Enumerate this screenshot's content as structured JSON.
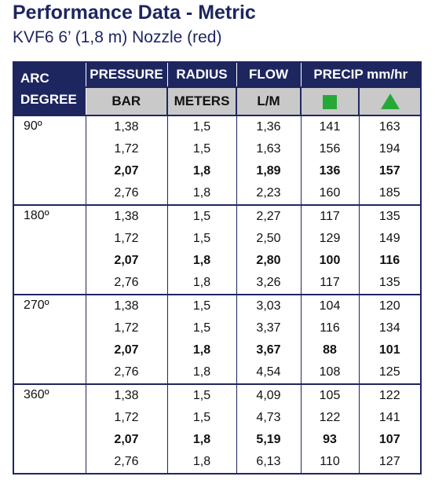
{
  "header": {
    "title": "Performance Data -  Metric",
    "subtitle": "KVF6  6’ (1,8 m) Nozzle (red)"
  },
  "table": {
    "head": {
      "arc": [
        "ARC",
        "DEGREE"
      ],
      "columns": [
        "PRESSURE",
        "RADIUS",
        "FLOW"
      ],
      "precip": "PRECIP mm/hr",
      "units": [
        "BAR",
        "METERS",
        "L/M"
      ]
    },
    "groups": [
      {
        "arc": "90º",
        "rows": [
          [
            "1,38",
            "1,5",
            "1,36",
            "141",
            "163"
          ],
          [
            "1,72",
            "1,5",
            "1,63",
            "156",
            "194"
          ],
          [
            "2,07",
            "1,8",
            "1,89",
            "136",
            "157"
          ],
          [
            "2,76",
            "1,8",
            "2,23",
            "160",
            "185"
          ]
        ]
      },
      {
        "arc": "180º",
        "rows": [
          [
            "1,38",
            "1,5",
            "2,27",
            "117",
            "135"
          ],
          [
            "1,72",
            "1,5",
            "2,50",
            "129",
            "149"
          ],
          [
            "2,07",
            "1,8",
            "2,80",
            "100",
            "116"
          ],
          [
            "2,76",
            "1,8",
            "3,26",
            "117",
            "135"
          ]
        ]
      },
      {
        "arc": "270º",
        "rows": [
          [
            "1,38",
            "1,5",
            "3,03",
            "104",
            "120"
          ],
          [
            "1,72",
            "1,5",
            "3,37",
            "116",
            "134"
          ],
          [
            "2,07",
            "1,8",
            "3,67",
            "88",
            "101"
          ],
          [
            "2,76",
            "1,8",
            "4,54",
            "108",
            "125"
          ]
        ]
      },
      {
        "arc": "360º",
        "rows": [
          [
            "1,38",
            "1,5",
            "4,09",
            "105",
            "122"
          ],
          [
            "1,72",
            "1,5",
            "4,73",
            "122",
            "141"
          ],
          [
            "2,07",
            "1,8",
            "5,19",
            "93",
            "107"
          ],
          [
            "2,76",
            "1,8",
            "6,13",
            "110",
            "127"
          ]
        ]
      }
    ]
  }
}
